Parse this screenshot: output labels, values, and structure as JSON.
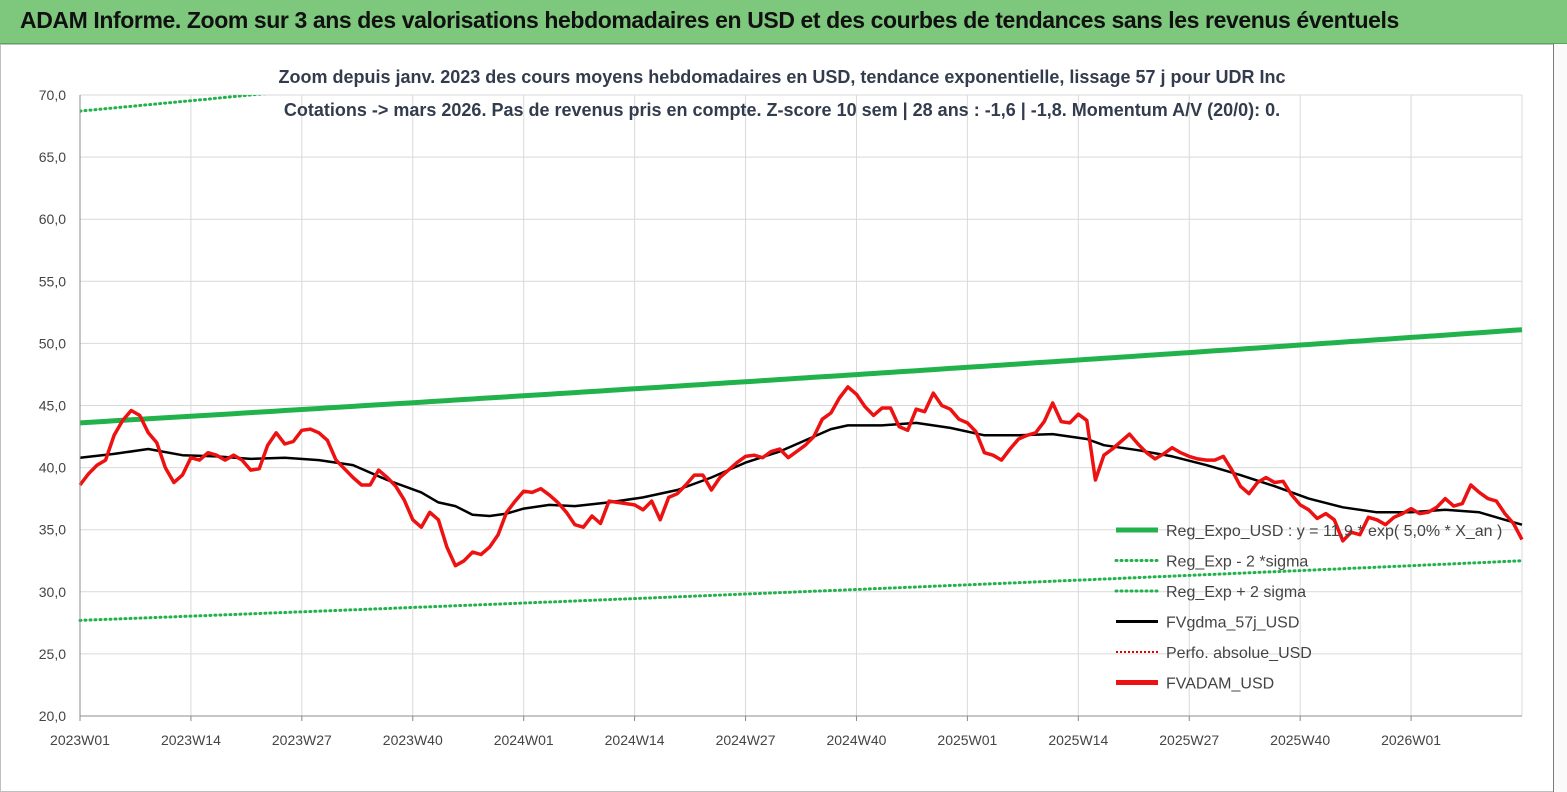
{
  "banner": {
    "title": "ADAM Informe. Zoom sur 3 ans des valorisations hebdomadaires en USD et des courbes de tendances sans les revenus éventuels"
  },
  "colors": {
    "banner_bg": "#7dc87d",
    "trend": "#22b24c",
    "gdma": "#000000",
    "perfo": "#e00000",
    "price": "#ee1111",
    "grid": "#d9d9d9"
  },
  "chart_data": {
    "type": "line",
    "title_lines": [
      "Zoom depuis janv. 2023 des cours moyens hebdomadaires en USD, tendance exponentielle, lissage 57 j pour UDR Inc",
      "Cotations -> mars 2026. Pas de revenus pris en  compte. Z-score 10 sem  | 28 ans : -1,6 | -1,8. Momentum A/V (20/0): 0."
    ],
    "x_tick_labels": [
      "2023W01",
      "2023W14",
      "2023W27",
      "2023W40",
      "2024W01",
      "2024W14",
      "2024W27",
      "2024W40",
      "2025W01",
      "2025W14",
      "2025W27",
      "2025W40",
      "2026W01"
    ],
    "x_tick_weeks": [
      0,
      13,
      26,
      39,
      52,
      65,
      78,
      91,
      104,
      117,
      130,
      143,
      156
    ],
    "x_range_weeks": [
      0,
      169
    ],
    "y_tick_labels": [
      "20,0",
      "25,0",
      "30,0",
      "35,0",
      "40,0",
      "45,0",
      "50,0",
      "55,0",
      "60,0",
      "65,0",
      "70,0"
    ],
    "ylim": [
      20,
      70
    ],
    "grid": true,
    "legend_position": "bottom-right",
    "legend": [
      {
        "label": "Reg_Expo_USD : y = 11,9 * exp( 5,0% *  X_an )",
        "key": "expo",
        "style": "solid-thick",
        "color": "#22b24c"
      },
      {
        "label": "Reg_Exp - 2 *sigma",
        "key": "minus2",
        "style": "dotted",
        "color": "#22b24c"
      },
      {
        "label": "Reg_Exp + 2 sigma",
        "key": "plus2",
        "style": "dotted",
        "color": "#22b24c"
      },
      {
        "label": "FVgdma_57j_USD",
        "key": "gdma",
        "style": "solid",
        "color": "#000000"
      },
      {
        "label": "Perfo. absolue_USD",
        "key": "perfo",
        "style": "dotted",
        "color": "#e00000"
      },
      {
        "label": "FVADAM_USD",
        "key": "price",
        "style": "solid-thick",
        "color": "#ee1111"
      }
    ],
    "series": [
      {
        "name": "Reg_Expo_USD : y = 11,9 * exp( 5,0% *  X_an )",
        "key": "expo",
        "start": 43.6,
        "end": 51.1
      },
      {
        "name": "Reg_Exp - 2 *sigma",
        "key": "minus2",
        "start": 27.7,
        "end": 32.5
      },
      {
        "name": "Reg_Exp + 2 sigma",
        "key": "plus2",
        "start": 68.7,
        "end": 80.5,
        "clipped_at": 70
      },
      {
        "name": "FVgdma_57j_USD",
        "key": "gdma",
        "points": [
          [
            0,
            40.8
          ],
          [
            4,
            41.1
          ],
          [
            8,
            41.5
          ],
          [
            12,
            41.0
          ],
          [
            16,
            40.9
          ],
          [
            20,
            40.7
          ],
          [
            24,
            40.8
          ],
          [
            28,
            40.6
          ],
          [
            32,
            40.2
          ],
          [
            36,
            39.0
          ],
          [
            40,
            38.0
          ],
          [
            42,
            37.2
          ],
          [
            44,
            36.9
          ],
          [
            46,
            36.2
          ],
          [
            48,
            36.1
          ],
          [
            50,
            36.3
          ],
          [
            52,
            36.7
          ],
          [
            55,
            37.0
          ],
          [
            58,
            36.9
          ],
          [
            62,
            37.2
          ],
          [
            66,
            37.6
          ],
          [
            70,
            38.2
          ],
          [
            74,
            39.2
          ],
          [
            78,
            40.4
          ],
          [
            82,
            41.3
          ],
          [
            86,
            42.5
          ],
          [
            88,
            43.1
          ],
          [
            90,
            43.4
          ],
          [
            94,
            43.4
          ],
          [
            96,
            43.5
          ],
          [
            98,
            43.6
          ],
          [
            102,
            43.2
          ],
          [
            106,
            42.6
          ],
          [
            110,
            42.6
          ],
          [
            114,
            42.7
          ],
          [
            118,
            42.3
          ],
          [
            120,
            41.8
          ],
          [
            124,
            41.4
          ],
          [
            128,
            40.9
          ],
          [
            132,
            40.2
          ],
          [
            136,
            39.4
          ],
          [
            140,
            38.5
          ],
          [
            144,
            37.5
          ],
          [
            148,
            36.8
          ],
          [
            152,
            36.4
          ],
          [
            156,
            36.4
          ],
          [
            160,
            36.6
          ],
          [
            164,
            36.4
          ],
          [
            167,
            35.8
          ],
          [
            169,
            35.4
          ]
        ]
      },
      {
        "name": "Perfo. absolue_USD",
        "key": "perfo",
        "points": []
      },
      {
        "name": "FVADAM_USD",
        "key": "price",
        "points": [
          [
            0,
            38.6
          ],
          [
            1,
            39.5
          ],
          [
            2,
            40.2
          ],
          [
            3,
            40.6
          ],
          [
            4,
            42.6
          ],
          [
            5,
            43.8
          ],
          [
            6,
            44.6
          ],
          [
            7,
            44.2
          ],
          [
            8,
            42.8
          ],
          [
            9,
            42.0
          ],
          [
            10,
            40.0
          ],
          [
            11,
            38.8
          ],
          [
            12,
            39.4
          ],
          [
            13,
            40.8
          ],
          [
            14,
            40.6
          ],
          [
            15,
            41.2
          ],
          [
            16,
            41.0
          ],
          [
            17,
            40.6
          ],
          [
            18,
            41.0
          ],
          [
            19,
            40.6
          ],
          [
            20,
            39.8
          ],
          [
            21,
            39.9
          ],
          [
            22,
            41.8
          ],
          [
            23,
            42.8
          ],
          [
            24,
            41.9
          ],
          [
            25,
            42.1
          ],
          [
            26,
            43.0
          ],
          [
            27,
            43.1
          ],
          [
            28,
            42.8
          ],
          [
            29,
            42.2
          ],
          [
            30,
            40.6
          ],
          [
            31,
            39.9
          ],
          [
            32,
            39.2
          ],
          [
            33,
            38.6
          ],
          [
            34,
            38.6
          ],
          [
            35,
            39.8
          ],
          [
            36,
            39.2
          ],
          [
            37,
            38.5
          ],
          [
            38,
            37.4
          ],
          [
            39,
            35.8
          ],
          [
            40,
            35.2
          ],
          [
            41,
            36.4
          ],
          [
            42,
            35.8
          ],
          [
            43,
            33.6
          ],
          [
            44,
            32.1
          ],
          [
            45,
            32.5
          ],
          [
            46,
            33.2
          ],
          [
            47,
            33.0
          ],
          [
            48,
            33.6
          ],
          [
            49,
            34.6
          ],
          [
            50,
            36.4
          ],
          [
            51,
            37.3
          ],
          [
            52,
            38.1
          ],
          [
            53,
            38.0
          ],
          [
            54,
            38.3
          ],
          [
            55,
            37.8
          ],
          [
            56,
            37.2
          ],
          [
            57,
            36.4
          ],
          [
            58,
            35.4
          ],
          [
            59,
            35.2
          ],
          [
            60,
            36.1
          ],
          [
            61,
            35.5
          ],
          [
            62,
            37.3
          ],
          [
            63,
            37.2
          ],
          [
            64,
            37.1
          ],
          [
            65,
            37.0
          ],
          [
            66,
            36.6
          ],
          [
            67,
            37.3
          ],
          [
            68,
            35.8
          ],
          [
            69,
            37.6
          ],
          [
            70,
            37.9
          ],
          [
            71,
            38.6
          ],
          [
            72,
            39.4
          ],
          [
            73,
            39.4
          ],
          [
            74,
            38.2
          ],
          [
            75,
            39.2
          ],
          [
            76,
            39.8
          ],
          [
            77,
            40.4
          ],
          [
            78,
            40.9
          ],
          [
            79,
            41.0
          ],
          [
            80,
            40.8
          ],
          [
            81,
            41.3
          ],
          [
            82,
            41.5
          ],
          [
            83,
            40.8
          ],
          [
            84,
            41.3
          ],
          [
            85,
            41.8
          ],
          [
            86,
            42.5
          ],
          [
            87,
            43.9
          ],
          [
            88,
            44.4
          ],
          [
            89,
            45.6
          ],
          [
            90,
            46.5
          ],
          [
            91,
            45.9
          ],
          [
            92,
            44.9
          ],
          [
            93,
            44.2
          ],
          [
            94,
            44.8
          ],
          [
            95,
            44.8
          ],
          [
            96,
            43.3
          ],
          [
            97,
            43.0
          ],
          [
            98,
            44.7
          ],
          [
            99,
            44.5
          ],
          [
            100,
            46.0
          ],
          [
            101,
            45.0
          ],
          [
            102,
            44.7
          ],
          [
            103,
            43.9
          ],
          [
            104,
            43.6
          ],
          [
            105,
            42.9
          ],
          [
            106,
            41.2
          ],
          [
            107,
            41.0
          ],
          [
            108,
            40.6
          ],
          [
            109,
            41.5
          ],
          [
            110,
            42.3
          ],
          [
            111,
            42.6
          ],
          [
            112,
            42.8
          ],
          [
            113,
            43.7
          ],
          [
            114,
            45.2
          ],
          [
            115,
            43.7
          ],
          [
            116,
            43.6
          ],
          [
            117,
            44.3
          ],
          [
            118,
            43.8
          ],
          [
            119,
            39.0
          ],
          [
            120,
            41.0
          ],
          [
            121,
            41.5
          ],
          [
            122,
            42.1
          ],
          [
            123,
            42.7
          ],
          [
            124,
            41.9
          ],
          [
            125,
            41.2
          ],
          [
            126,
            40.7
          ],
          [
            127,
            41.1
          ],
          [
            128,
            41.6
          ],
          [
            129,
            41.2
          ],
          [
            130,
            40.9
          ],
          [
            131,
            40.7
          ],
          [
            132,
            40.6
          ],
          [
            133,
            40.6
          ],
          [
            134,
            40.9
          ],
          [
            135,
            39.8
          ],
          [
            136,
            38.5
          ],
          [
            137,
            37.9
          ],
          [
            138,
            38.8
          ],
          [
            139,
            39.2
          ],
          [
            140,
            38.8
          ],
          [
            141,
            38.9
          ],
          [
            142,
            37.8
          ],
          [
            143,
            37.0
          ],
          [
            144,
            36.6
          ],
          [
            145,
            35.9
          ],
          [
            146,
            36.3
          ],
          [
            147,
            35.8
          ],
          [
            148,
            34.1
          ],
          [
            149,
            34.8
          ],
          [
            150,
            34.6
          ],
          [
            151,
            36.0
          ],
          [
            152,
            35.8
          ],
          [
            153,
            35.4
          ],
          [
            154,
            36.0
          ],
          [
            155,
            36.3
          ],
          [
            156,
            36.7
          ],
          [
            157,
            36.3
          ],
          [
            158,
            36.4
          ],
          [
            159,
            36.8
          ],
          [
            160,
            37.5
          ],
          [
            161,
            36.9
          ],
          [
            162,
            37.1
          ],
          [
            163,
            38.6
          ],
          [
            164,
            38.0
          ],
          [
            165,
            37.5
          ],
          [
            166,
            37.3
          ],
          [
            167,
            36.3
          ],
          [
            168,
            35.5
          ],
          [
            169,
            34.2
          ]
        ]
      }
    ]
  }
}
